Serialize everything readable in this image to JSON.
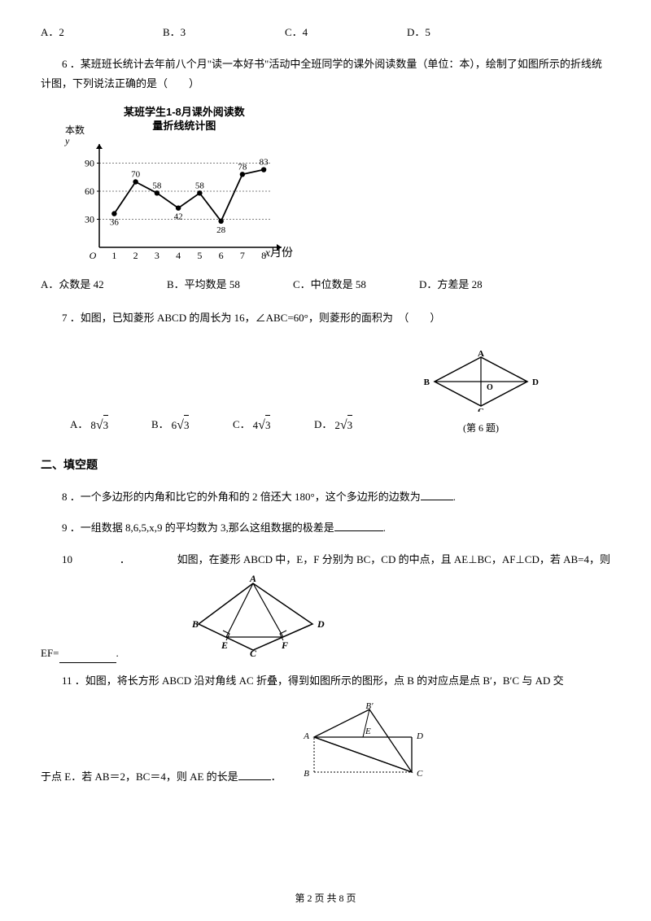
{
  "q_prev_options": {
    "a": "A．2",
    "b": "B．3",
    "c": "C．4",
    "d": "D．5"
  },
  "q6": {
    "text": "6 ．某班班长统计去年前八个月\"读一本好书\"活动中全班同学的课外阅读数量（单位：本），绘制了如图所示的折线统计图，下列说法正确的是（　　）",
    "chart": {
      "title_l1": "某班学生1-8月课外阅读数",
      "title_l2": "量折线统计图",
      "y_label": "本数",
      "x_label": "月份",
      "x_cats": [
        "1",
        "2",
        "3",
        "4",
        "5",
        "6",
        "7",
        "8"
      ],
      "y_ticks": [
        30,
        60,
        90
      ],
      "values": [
        36,
        70,
        58,
        42,
        58,
        28,
        78,
        83
      ],
      "line_color": "#000000",
      "point_color": "#000000",
      "bg": "#ffffff"
    },
    "options": {
      "a": "A．众数是 42",
      "b": "B．平均数是 58",
      "c": "C．中位数是 58",
      "d": "D．方差是 28"
    }
  },
  "q7": {
    "text": "7 ．如图，已知菱形 ABCD 的周长为 16，∠ABC=60°，则菱形的面积为　（　　）",
    "options": {
      "a_pre": "A．",
      "a_coef": "8",
      "a_rad": "3",
      "b_pre": "B．",
      "b_coef": "6",
      "b_rad": "3",
      "c_pre": "C．",
      "c_coef": "4",
      "c_rad": "3",
      "d_pre": "D．",
      "d_coef": "2",
      "d_rad": "3"
    },
    "figure": {
      "A": "A",
      "B": "B",
      "C": "C",
      "D": "D",
      "O": "O",
      "caption": "(第 6 题)"
    }
  },
  "section2_title": "二、填空题",
  "q8": {
    "text_pre": "8 ．一个多边形的内角和比它的外角和的 2 倍还大 180°，这个多边形的边数为",
    "text_post": "."
  },
  "q9": {
    "text_pre": "9 ．一组数据 8,6,5,x,9 的平均数为 3,那么这组数据的极差是",
    "text_post": "."
  },
  "q10": {
    "num": "10",
    "dot": "．",
    "text": "如图，在菱形 ABCD 中，E，F 分别为 BC，CD 的中点，且 AE⊥BC，AF⊥CD，若 AB=4，则",
    "ef_pre": "EF=",
    "ef_post": ".",
    "figure": {
      "A": "A",
      "B": "B",
      "C": "C",
      "D": "D",
      "E": "E",
      "F": "F"
    }
  },
  "q11": {
    "text1": "11 ．如图，将长方形 ABCD 沿对角线 AC 折叠，得到如图所示的图形，点 B 的对应点是点 B′，B′C 与 AD 交",
    "text2_pre": "于点 E．若 AB＝2，BC＝4，则 AE 的长是",
    "text2_post": "．",
    "figure": {
      "A": "A",
      "B": "B",
      "Bp": "B′",
      "C": "C",
      "D": "D",
      "E": "E"
    }
  },
  "footer": "第 2 页 共 8 页"
}
